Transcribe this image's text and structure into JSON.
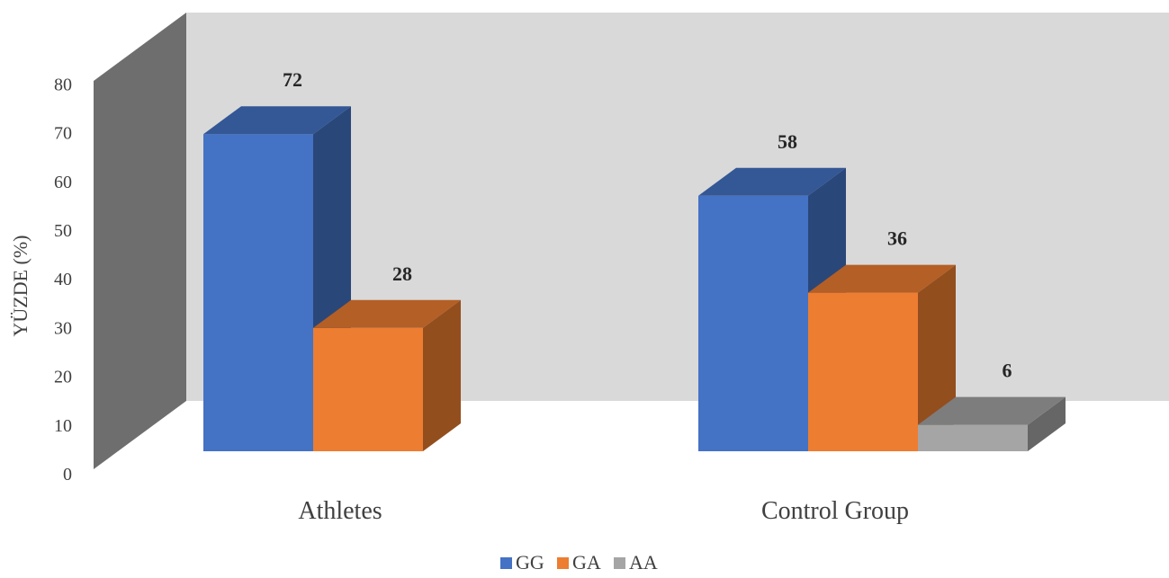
{
  "chart_data": {
    "type": "bar",
    "style": "3d-clustered-column",
    "title": "",
    "xlabel": "",
    "ylabel": "YÜZDE (%)",
    "ylim": [
      0,
      80
    ],
    "yticks": [
      0,
      10,
      20,
      30,
      40,
      50,
      60,
      70,
      80
    ],
    "grid": false,
    "legend_position": "bottom",
    "categories": [
      "Athletes",
      "Control Group"
    ],
    "series": [
      {
        "name": "GG",
        "values": [
          72,
          58
        ],
        "color": "#4472C4"
      },
      {
        "name": "GA",
        "values": [
          28,
          36
        ],
        "color": "#ED7D31"
      },
      {
        "name": "AA",
        "values": [
          null,
          6
        ],
        "color": "#A5A5A5"
      }
    ],
    "data_labels": [
      [
        72,
        58
      ],
      [
        28,
        36
      ],
      [
        null,
        6
      ]
    ],
    "colors": {
      "back_wall": "#D9D9D9",
      "side_wall": "#6E6E6E"
    }
  }
}
